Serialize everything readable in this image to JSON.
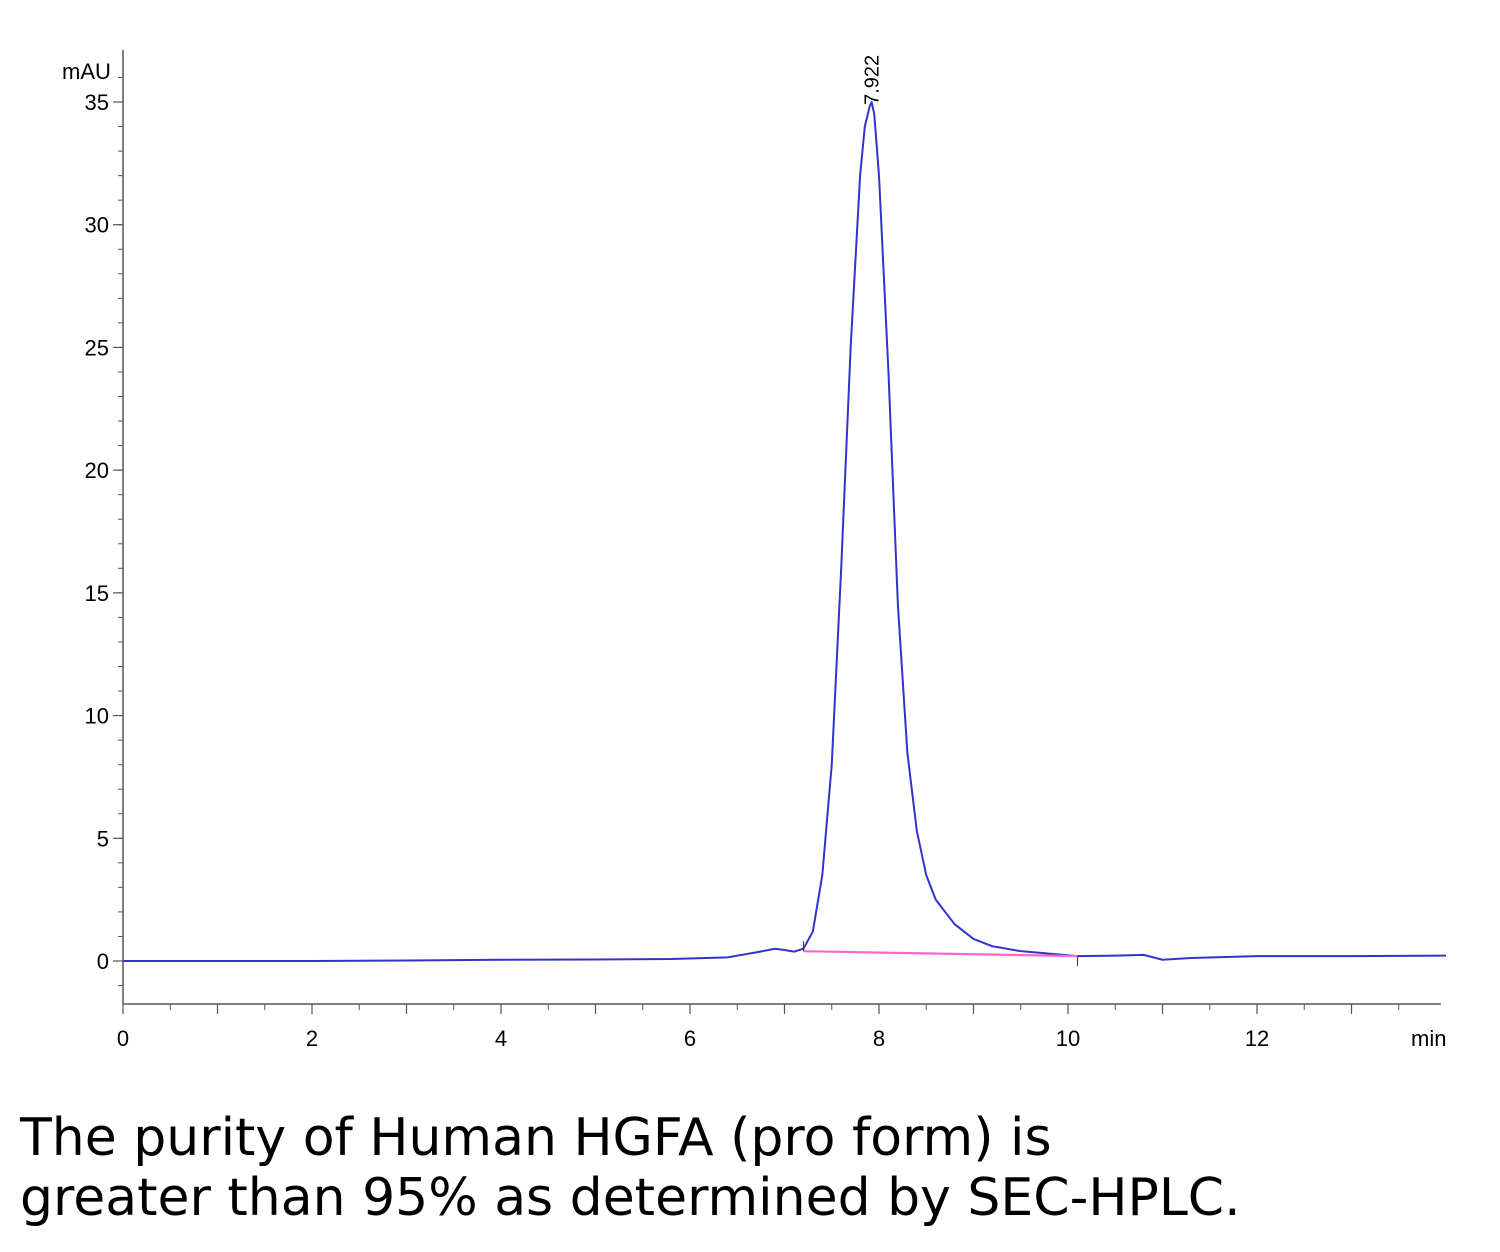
{
  "chart_data": {
    "type": "line",
    "ylabel": "mAU",
    "xlabel": "min",
    "xlim": [
      0,
      14
    ],
    "ylim": [
      -1.8,
      37
    ],
    "x_ticks": [
      0,
      2,
      4,
      6,
      8,
      10,
      12
    ],
    "y_ticks": [
      0,
      5,
      10,
      15,
      20,
      25,
      30,
      35
    ],
    "grid": false,
    "legend": "none",
    "peak_annotation": {
      "label": "7.922",
      "x": 7.922,
      "y": 34.8
    },
    "series": [
      {
        "color": "#3333cc",
        "x": [
          0,
          1,
          2,
          3,
          4,
          5,
          5.8,
          6.4,
          6.7,
          6.9,
          7.0,
          7.1,
          7.2,
          7.3,
          7.4,
          7.5,
          7.6,
          7.7,
          7.8,
          7.85,
          7.9,
          7.922,
          7.95,
          8.0,
          8.1,
          8.2,
          8.3,
          8.4,
          8.5,
          8.6,
          8.8,
          9.0,
          9.2,
          9.5,
          9.8,
          10.1,
          10.5,
          10.8,
          11.0,
          11.3,
          12,
          13,
          14
        ],
        "y": [
          0.0,
          0.0,
          0.0,
          0.02,
          0.05,
          0.06,
          0.08,
          0.15,
          0.35,
          0.5,
          0.45,
          0.38,
          0.5,
          1.2,
          3.5,
          8.0,
          16.0,
          25.0,
          32.0,
          34.0,
          34.8,
          35.0,
          34.5,
          32.0,
          24.0,
          14.5,
          8.5,
          5.3,
          3.5,
          2.5,
          1.5,
          0.9,
          0.6,
          0.4,
          0.3,
          0.2,
          0.22,
          0.25,
          0.05,
          0.12,
          0.2,
          0.2,
          0.22
        ]
      },
      {
        "color": "#ff66cc",
        "x": [
          7.2,
          10.1
        ],
        "y": [
          0.4,
          0.2
        ]
      }
    ]
  },
  "caption": {
    "line1": "The purity of Human HGFA (pro form) is",
    "line2": "greater than 95% as determined by SEC-HPLC."
  }
}
